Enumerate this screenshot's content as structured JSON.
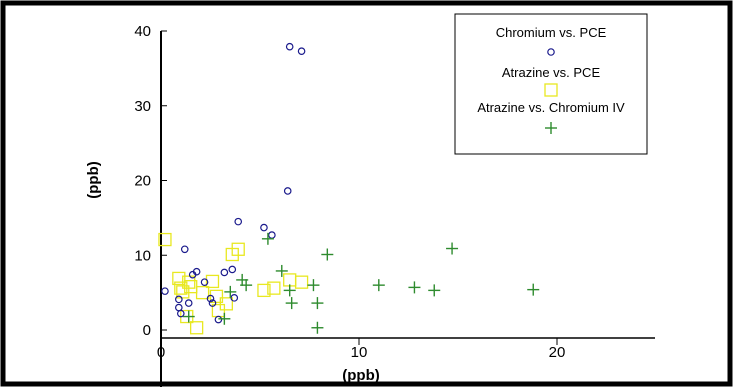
{
  "chart_data": {
    "type": "scatter",
    "title": "",
    "xlabel": "(ppb)",
    "ylabel": "(ppb)",
    "xlim": [
      0,
      20
    ],
    "ylim": [
      0,
      40
    ],
    "xticks": [
      0,
      10,
      20
    ],
    "yticks": [
      0,
      10,
      20,
      30,
      40
    ],
    "grid": false,
    "legend_position": "top-right",
    "series": [
      {
        "name": "Chromium vs. PCE",
        "marker": "circle",
        "color": "#1a1a8c",
        "points": [
          [
            0.2,
            5.2
          ],
          [
            0.9,
            4.1
          ],
          [
            0.9,
            3.0
          ],
          [
            1.0,
            2.2
          ],
          [
            1.2,
            10.8
          ],
          [
            1.4,
            3.6
          ],
          [
            1.6,
            7.4
          ],
          [
            1.8,
            7.8
          ],
          [
            2.2,
            6.4
          ],
          [
            2.5,
            4.2
          ],
          [
            2.6,
            3.6
          ],
          [
            2.9,
            1.4
          ],
          [
            3.2,
            7.7
          ],
          [
            3.6,
            8.1
          ],
          [
            3.7,
            4.3
          ],
          [
            3.9,
            14.5
          ],
          [
            5.2,
            13.7
          ],
          [
            5.6,
            12.7
          ],
          [
            6.4,
            18.6
          ],
          [
            6.5,
            37.9
          ],
          [
            7.1,
            37.3
          ]
        ]
      },
      {
        "name": "Atrazine vs. PCE",
        "marker": "square",
        "color": "#e8e820",
        "points": [
          [
            0.2,
            12.1
          ],
          [
            0.9,
            6.9
          ],
          [
            1.0,
            5.6
          ],
          [
            1.1,
            5.1
          ],
          [
            1.3,
            1.8
          ],
          [
            1.4,
            6.4
          ],
          [
            1.5,
            5.8
          ],
          [
            1.8,
            0.3
          ],
          [
            2.1,
            5.0
          ],
          [
            2.6,
            6.5
          ],
          [
            2.8,
            4.5
          ],
          [
            2.9,
            2.6
          ],
          [
            3.3,
            3.5
          ],
          [
            3.6,
            10.1
          ],
          [
            3.9,
            10.8
          ],
          [
            5.2,
            5.3
          ],
          [
            5.7,
            5.6
          ],
          [
            6.5,
            6.7
          ],
          [
            7.1,
            6.4
          ]
        ]
      },
      {
        "name": "Atrazine vs. Chromium IV",
        "marker": "plus",
        "color": "#2e8b2e",
        "points": [
          [
            1.4,
            1.8
          ],
          [
            3.2,
            1.5
          ],
          [
            3.5,
            5.1
          ],
          [
            4.1,
            6.7
          ],
          [
            4.3,
            6.0
          ],
          [
            5.4,
            12.2
          ],
          [
            6.1,
            7.9
          ],
          [
            6.5,
            5.3
          ],
          [
            6.6,
            3.6
          ],
          [
            7.7,
            6.0
          ],
          [
            7.9,
            3.6
          ],
          [
            7.9,
            0.3
          ],
          [
            8.4,
            10.1
          ],
          [
            11.0,
            6.0
          ],
          [
            12.8,
            5.7
          ],
          [
            13.8,
            5.3
          ],
          [
            14.7,
            10.9
          ],
          [
            18.8,
            5.4
          ]
        ]
      }
    ]
  }
}
